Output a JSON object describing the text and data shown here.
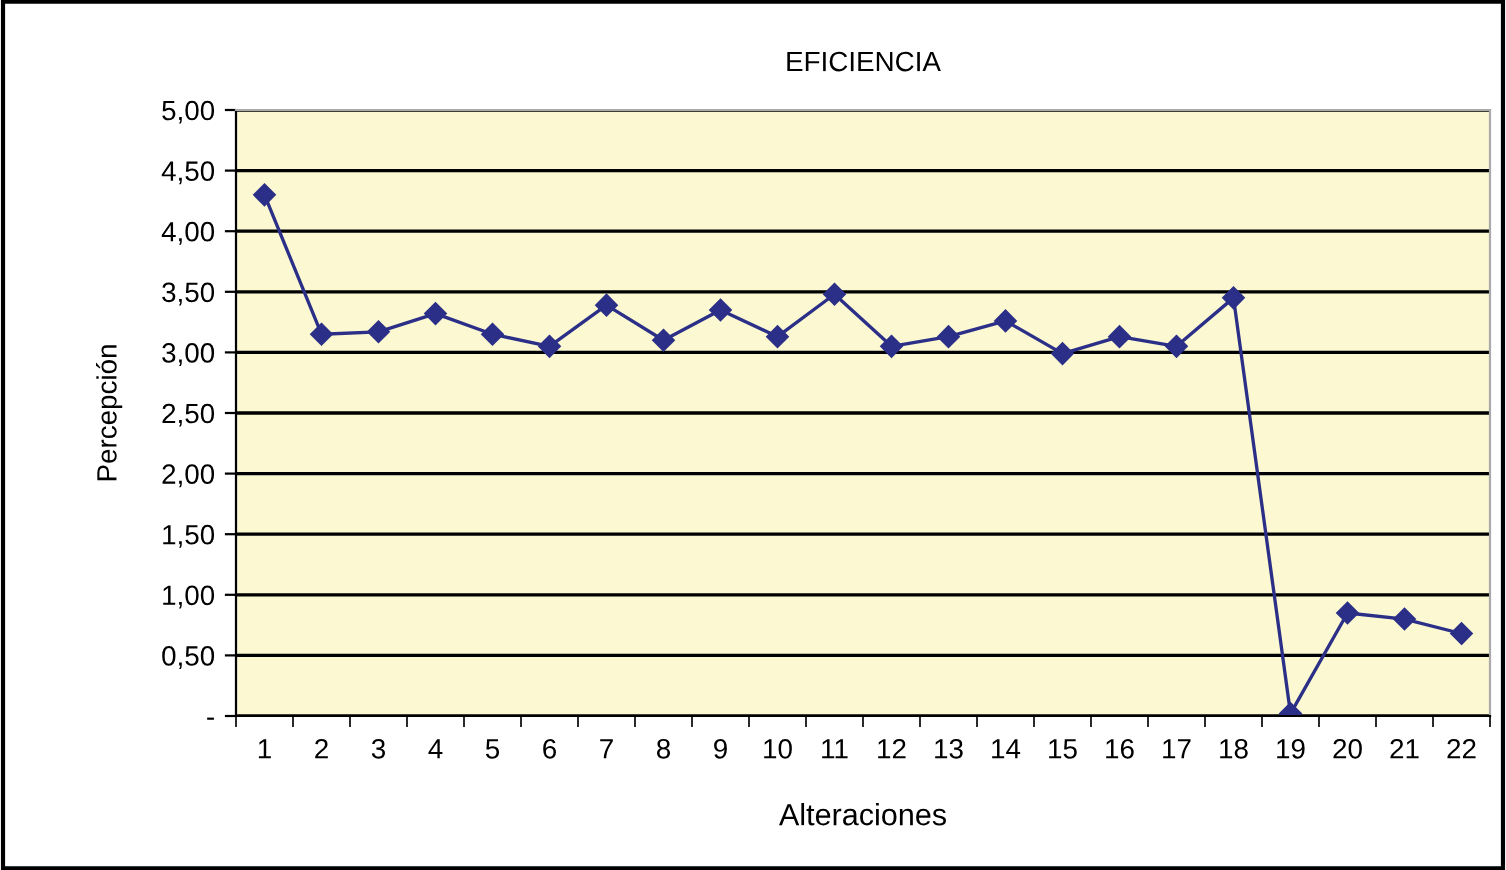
{
  "chart_data": {
    "type": "line",
    "title": "EFICIENCIA",
    "xlabel": "Alteraciones",
    "ylabel": "Percepción",
    "categories": [
      "1",
      "2",
      "3",
      "4",
      "5",
      "6",
      "7",
      "8",
      "9",
      "10",
      "11",
      "12",
      "13",
      "14",
      "15",
      "16",
      "17",
      "18",
      "19",
      "20",
      "21",
      "22"
    ],
    "series": [
      {
        "color": "#2b2f87",
        "values": [
          4.3,
          3.15,
          3.17,
          3.32,
          3.15,
          3.05,
          3.39,
          3.1,
          3.35,
          3.13,
          3.48,
          3.05,
          3.13,
          3.26,
          2.99,
          3.13,
          3.05,
          3.45,
          0.02,
          0.85,
          0.8,
          0.68
        ]
      }
    ],
    "ylim": [
      0,
      5
    ],
    "yticks": [
      {
        "value": 0,
        "label": "-"
      },
      {
        "value": 0.5,
        "label": "0,50"
      },
      {
        "value": 1,
        "label": "1,00"
      },
      {
        "value": 1.5,
        "label": "1,50"
      },
      {
        "value": 2,
        "label": "2,00"
      },
      {
        "value": 2.5,
        "label": "2,50"
      },
      {
        "value": 3,
        "label": "3,00"
      },
      {
        "value": 3.5,
        "label": "3,50"
      },
      {
        "value": 4,
        "label": "4,00"
      },
      {
        "value": 4.5,
        "label": "4,50"
      },
      {
        "value": 5,
        "label": "5,00"
      }
    ],
    "grid": "y",
    "marker": "diamond",
    "line_style": "solid",
    "legend": false
  }
}
